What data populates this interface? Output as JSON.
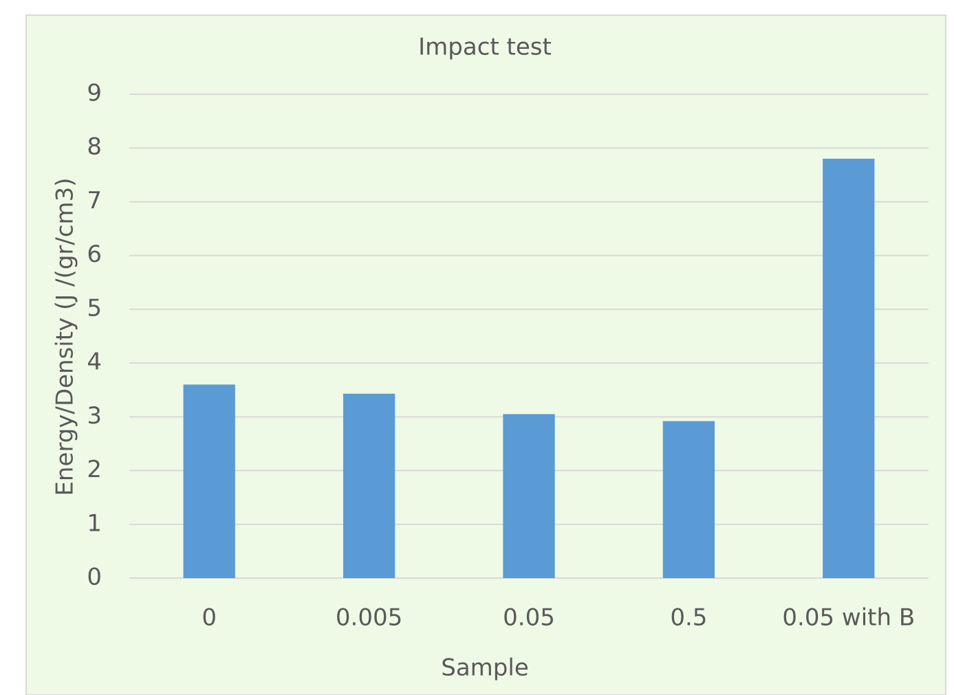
{
  "chart_data": {
    "type": "bar",
    "title": "Impact test",
    "x_label": "Sample",
    "y_label": "Energy/Density (J /(gr/cm3)",
    "categories": [
      "0",
      "0.005",
      "0.05",
      "0.5",
      "0.05 with B"
    ],
    "values": [
      3.6,
      3.43,
      3.05,
      2.92,
      7.8
    ],
    "color": "#5b9bd5",
    "ylim": [
      0,
      9
    ],
    "yticks": [
      0,
      1,
      2,
      3,
      4,
      5,
      6,
      7,
      8,
      9
    ],
    "grid": true
  }
}
